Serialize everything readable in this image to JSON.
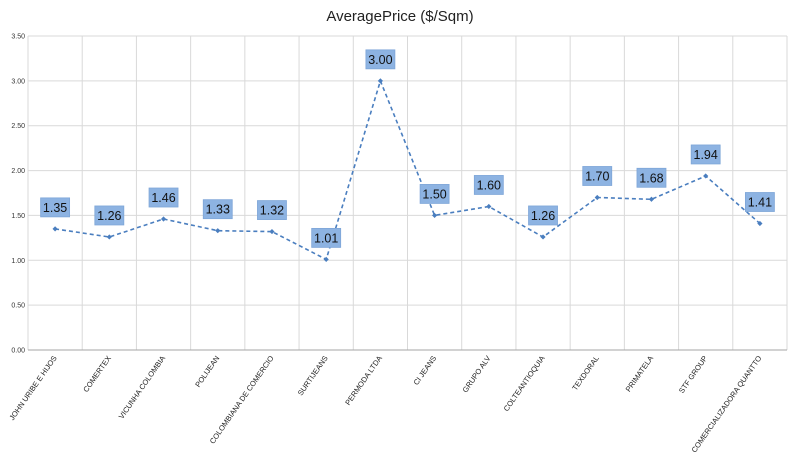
{
  "chart_data": {
    "type": "line",
    "title": "AveragePrice ($/Sqm)",
    "xlabel": "",
    "ylabel": "",
    "categories": [
      "JOHN URIBE E HIJOS",
      "COMERTEX",
      "VICUNHA COLOMBIA",
      "POLIJEAN",
      "COLOMBIANA DE COMERCIO",
      "SURTIJEANS",
      "PERMODA LTDA",
      "CI JEANS",
      "GRUPO ALV",
      "COLTEANTIOQUIA",
      "TEXDORAL",
      "PRIMATELA",
      "STF GROUP",
      "COMERCIALIZADORA QUANTTO"
    ],
    "series": [
      {
        "values": [
          1.35,
          1.26,
          1.46,
          1.33,
          1.32,
          1.01,
          3.0,
          1.5,
          1.6,
          1.26,
          1.7,
          1.68,
          1.94,
          1.41
        ],
        "data_labels": [
          "1.35",
          "1.26",
          "1.46",
          "1.33",
          "1.32",
          "1.01",
          "3.00",
          "1.50",
          "1.60",
          "1.26",
          "1.70",
          "1.68",
          "1.94",
          "1.41"
        ]
      }
    ],
    "ylim": [
      0,
      3.5
    ],
    "yticks": [
      "0.00",
      "0.50",
      "1.00",
      "1.50",
      "2.00",
      "2.50",
      "3.00",
      "3.50"
    ],
    "grid": true,
    "legend": "none",
    "colors": {
      "line": "#4a7ebf",
      "marker": "#4a7ebf",
      "label_fill": "#8db3e2",
      "label_border": "#7ea6d8",
      "grid": "#d9d9d9",
      "axis": "#a6a6a6"
    }
  }
}
